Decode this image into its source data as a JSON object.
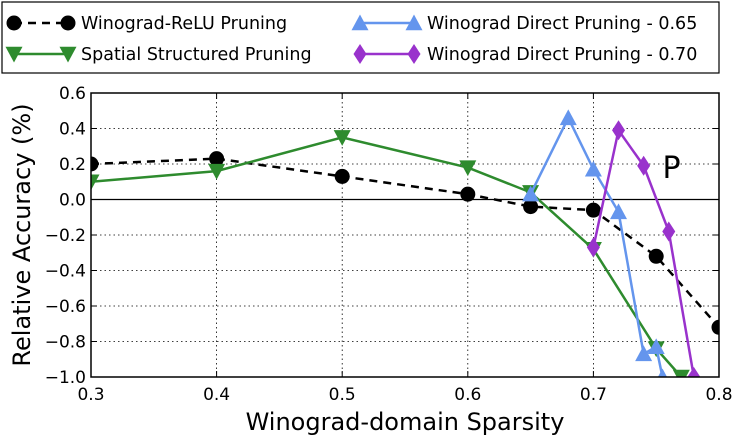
{
  "chart_data": {
    "type": "line",
    "title": "",
    "xlabel": "Winograd-domain Sparsity",
    "ylabel": "Relative Accuracy (%)",
    "xlim": [
      0.3,
      0.8
    ],
    "ylim": [
      -1.0,
      0.6
    ],
    "xticks": [
      "0.3",
      "0.4",
      "0.5",
      "0.6",
      "0.7",
      "0.8"
    ],
    "yticks": [
      "−1.0",
      "−0.8",
      "−0.6",
      "−0.4",
      "−0.2",
      "0.0",
      "0.2",
      "0.4",
      "0.6"
    ],
    "grid": true,
    "grid_style": "dotted",
    "legend_position": "top",
    "annotations": [
      {
        "text": "P",
        "x": 0.755,
        "y": 0.2
      }
    ],
    "series": [
      {
        "name": "Winograd-ReLU Pruning",
        "color": "#000000",
        "marker": "circle",
        "linestyle": "dashed",
        "x": [
          0.3,
          0.4,
          0.5,
          0.6,
          0.65,
          0.7,
          0.75,
          0.8
        ],
        "y": [
          0.2,
          0.23,
          0.13,
          0.03,
          -0.04,
          -0.06,
          -0.32,
          -0.72
        ]
      },
      {
        "name": "Spatial Structured Pruning",
        "color": "#2e8b2e",
        "marker": "triangle-down",
        "linestyle": "solid",
        "x": [
          0.3,
          0.4,
          0.5,
          0.6,
          0.65,
          0.7,
          0.75,
          0.77
        ],
        "y": [
          0.1,
          0.16,
          0.35,
          0.18,
          0.04,
          -0.28,
          -0.84,
          -1.0
        ]
      },
      {
        "name": "Winograd Direct Pruning - 0.65",
        "color": "#6495ed",
        "marker": "triangle-up",
        "linestyle": "solid",
        "x": [
          0.65,
          0.68,
          0.7,
          0.72,
          0.74,
          0.75,
          0.755
        ],
        "y": [
          0.03,
          0.46,
          0.17,
          -0.07,
          -0.87,
          -0.83,
          -1.0
        ]
      },
      {
        "name": "Winograd Direct Pruning - 0.70",
        "color": "#9932cc",
        "marker": "diamond",
        "linestyle": "solid",
        "x": [
          0.7,
          0.72,
          0.74,
          0.76,
          0.78
        ],
        "y": [
          -0.27,
          0.39,
          0.19,
          -0.18,
          -1.0
        ]
      }
    ]
  }
}
